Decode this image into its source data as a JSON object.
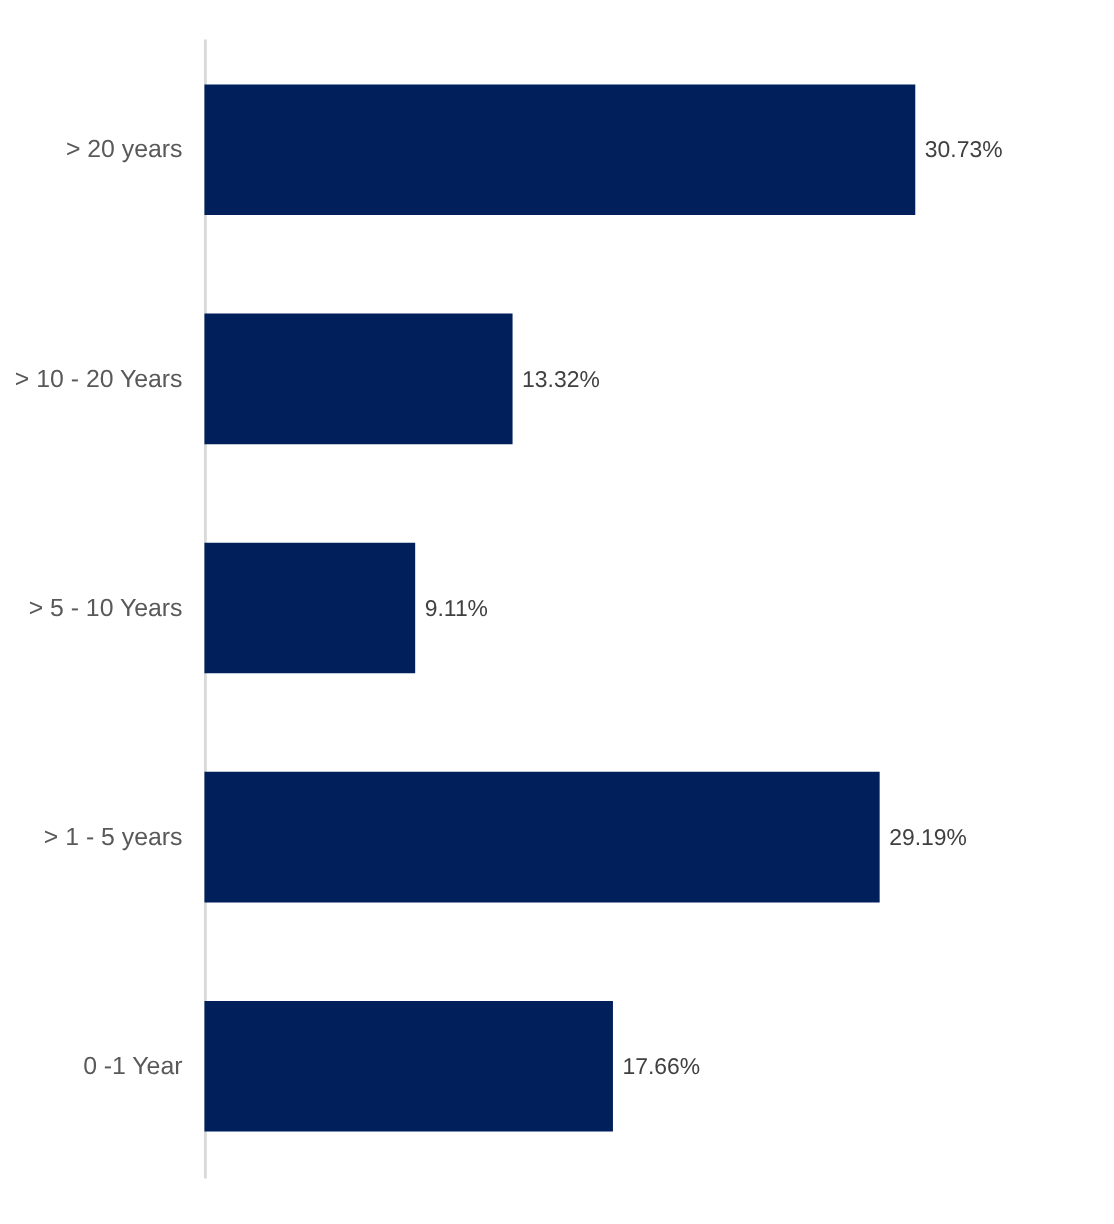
{
  "chart_data": {
    "type": "bar",
    "orientation": "horizontal",
    "categories": [
      "> 20 years",
      "> 10 - 20 Years",
      "> 5 - 10 Years",
      "> 1 - 5 years",
      "0 -1 Year"
    ],
    "values": [
      30.73,
      13.32,
      9.11,
      29.19,
      17.66
    ],
    "value_labels": [
      "30.73%",
      "13.32%",
      "9.11%",
      "29.19%",
      "17.66%"
    ],
    "color": "#001f5b"
  }
}
